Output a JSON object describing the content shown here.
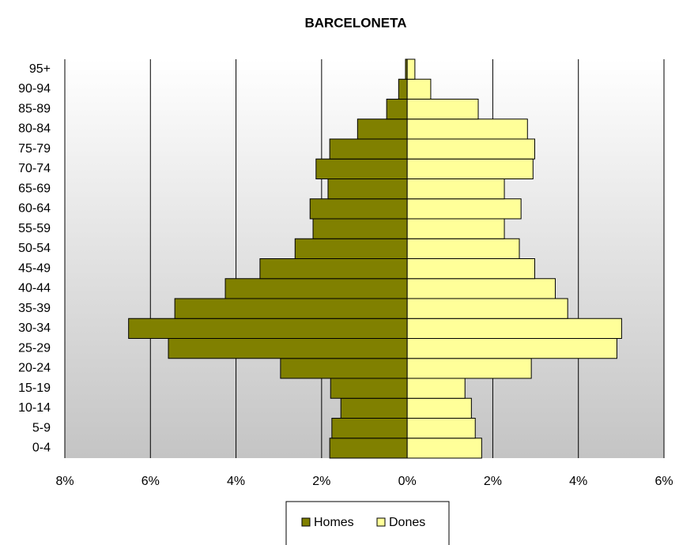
{
  "chart_data": {
    "type": "pyramid",
    "title": "BARCELONETA",
    "categories": [
      "0-4",
      "5-9",
      "10-14",
      "15-19",
      "20-24",
      "25-29",
      "30-34",
      "35-39",
      "40-44",
      "45-49",
      "50-54",
      "55-59",
      "60-64",
      "65-69",
      "70-74",
      "75-79",
      "80-84",
      "85-89",
      "90-94",
      "95+"
    ],
    "series": [
      {
        "name": "Homes",
        "color": "#808000",
        "values": [
          -1.81,
          -1.76,
          -1.55,
          -1.79,
          -2.96,
          -5.58,
          -6.51,
          -5.43,
          -4.25,
          -3.44,
          -2.62,
          -2.2,
          -2.27,
          -1.85,
          -2.13,
          -1.81,
          -1.16,
          -0.48,
          -0.2,
          -0.04
        ]
      },
      {
        "name": "Dones",
        "color": "#ffff99",
        "values": [
          1.74,
          1.59,
          1.5,
          1.35,
          2.9,
          4.9,
          5.01,
          3.75,
          3.46,
          2.98,
          2.62,
          2.27,
          2.66,
          2.27,
          2.94,
          2.98,
          2.81,
          1.66,
          0.55,
          0.18
        ]
      }
    ],
    "xlim": [
      -8,
      6
    ],
    "xticks": [
      {
        "value": -8,
        "label": "8%"
      },
      {
        "value": -6,
        "label": "6%"
      },
      {
        "value": -4,
        "label": "4%"
      },
      {
        "value": -2,
        "label": "2%"
      },
      {
        "value": 0,
        "label": "0%"
      },
      {
        "value": 2,
        "label": "2%"
      },
      {
        "value": 4,
        "label": "4%"
      },
      {
        "value": 6,
        "label": "6%"
      }
    ],
    "grid": true,
    "legend": "bottom"
  }
}
